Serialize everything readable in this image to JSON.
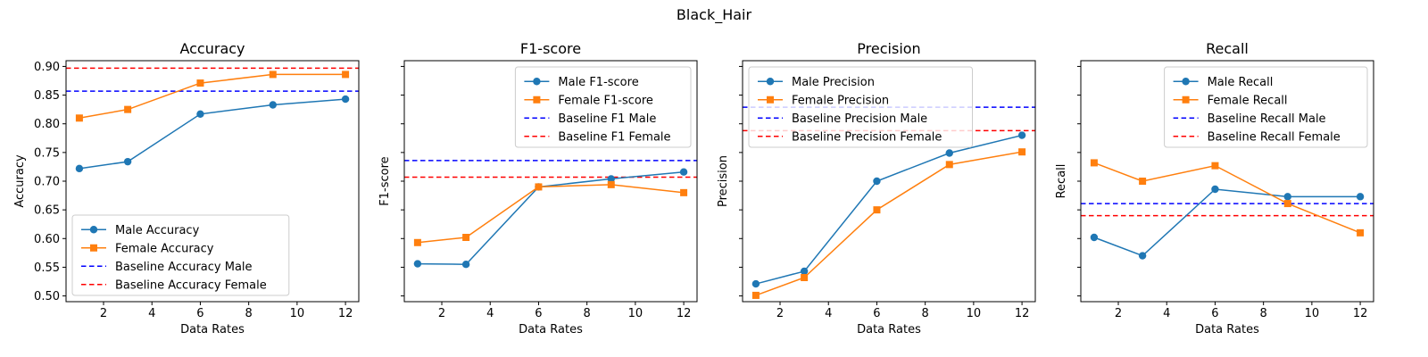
{
  "figure_title": "Black_Hair",
  "chart_data": [
    {
      "type": "line",
      "title": "Accuracy",
      "xlabel": "Data Rates",
      "ylabel": "Accuracy",
      "xlim": [
        0.45,
        12.55
      ],
      "ylim": [
        0.49,
        0.91
      ],
      "xticks": [
        "2",
        "4",
        "6",
        "8",
        "10",
        "12"
      ],
      "yticks": [
        "0.50",
        "0.55",
        "0.60",
        "0.65",
        "0.70",
        "0.75",
        "0.80",
        "0.85",
        "0.90"
      ],
      "show_yticklabels": true,
      "legend_position": "lower-left",
      "x": [
        1,
        3,
        6,
        9,
        12
      ],
      "series": [
        {
          "name": "Male Accuracy",
          "values": [
            0.722,
            0.734,
            0.817,
            0.833,
            0.843
          ],
          "color": "#1f77b4",
          "marker": "circle"
        },
        {
          "name": "Female Accuracy",
          "values": [
            0.81,
            0.825,
            0.871,
            0.886,
            0.886
          ],
          "color": "#ff7f0e",
          "marker": "square"
        }
      ],
      "baselines": [
        {
          "name": "Baseline Accuracy Male",
          "value": 0.857,
          "color": "#0000ff"
        },
        {
          "name": "Baseline Accuracy Female",
          "value": 0.897,
          "color": "#ff0000"
        }
      ]
    },
    {
      "type": "line",
      "title": "F1-score",
      "xlabel": "Data Rates",
      "ylabel": "F1-score",
      "xlim": [
        0.45,
        12.55
      ],
      "ylim": [
        0.49,
        0.91
      ],
      "xticks": [
        "2",
        "4",
        "6",
        "8",
        "10",
        "12"
      ],
      "yticks": [],
      "show_yticklabels": false,
      "legend_position": "upper-right",
      "x": [
        1,
        3,
        6,
        9,
        12
      ],
      "series": [
        {
          "name": "Male F1-score",
          "values": [
            0.556,
            0.555,
            0.69,
            0.704,
            0.716
          ],
          "color": "#1f77b4",
          "marker": "circle"
        },
        {
          "name": "Female F1-score",
          "values": [
            0.593,
            0.602,
            0.69,
            0.694,
            0.68
          ],
          "color": "#ff7f0e",
          "marker": "square"
        }
      ],
      "baselines": [
        {
          "name": "Baseline F1 Male",
          "value": 0.736,
          "color": "#0000ff"
        },
        {
          "name": "Baseline F1 Female",
          "value": 0.707,
          "color": "#ff0000"
        }
      ]
    },
    {
      "type": "line",
      "title": "Precision",
      "xlabel": "Data Rates",
      "ylabel": "Precision",
      "xlim": [
        0.45,
        12.55
      ],
      "ylim": [
        0.49,
        0.91
      ],
      "xticks": [
        "2",
        "4",
        "6",
        "8",
        "10",
        "12"
      ],
      "yticks": [],
      "show_yticklabels": false,
      "legend_position": "upper-left",
      "x": [
        1,
        3,
        6,
        9,
        12
      ],
      "series": [
        {
          "name": "Male Precision",
          "values": [
            0.521,
            0.543,
            0.7,
            0.749,
            0.78
          ],
          "color": "#1f77b4",
          "marker": "circle"
        },
        {
          "name": "Female Precision",
          "values": [
            0.501,
            0.532,
            0.65,
            0.729,
            0.751
          ],
          "color": "#ff7f0e",
          "marker": "square"
        }
      ],
      "baselines": [
        {
          "name": "Baseline Precision Male",
          "value": 0.829,
          "color": "#0000ff"
        },
        {
          "name": "Baseline Precision Female",
          "value": 0.788,
          "color": "#ff0000"
        }
      ]
    },
    {
      "type": "line",
      "title": "Recall",
      "xlabel": "Data Rates",
      "ylabel": "Recall",
      "xlim": [
        0.45,
        12.55
      ],
      "ylim": [
        0.49,
        0.91
      ],
      "xticks": [
        "2",
        "4",
        "6",
        "8",
        "10",
        "12"
      ],
      "yticks": [],
      "show_yticklabels": false,
      "legend_position": "upper-right",
      "x": [
        1,
        3,
        6,
        9,
        12
      ],
      "series": [
        {
          "name": "Male Recall",
          "values": [
            0.602,
            0.57,
            0.686,
            0.673,
            0.673
          ],
          "color": "#1f77b4",
          "marker": "circle"
        },
        {
          "name": "Female Recall",
          "values": [
            0.732,
            0.7,
            0.727,
            0.661,
            0.61
          ],
          "color": "#ff7f0e",
          "marker": "square"
        }
      ],
      "baselines": [
        {
          "name": "Baseline Recall Male",
          "value": 0.661,
          "color": "#0000ff"
        },
        {
          "name": "Baseline Recall Female",
          "value": 0.64,
          "color": "#ff0000"
        }
      ]
    }
  ]
}
